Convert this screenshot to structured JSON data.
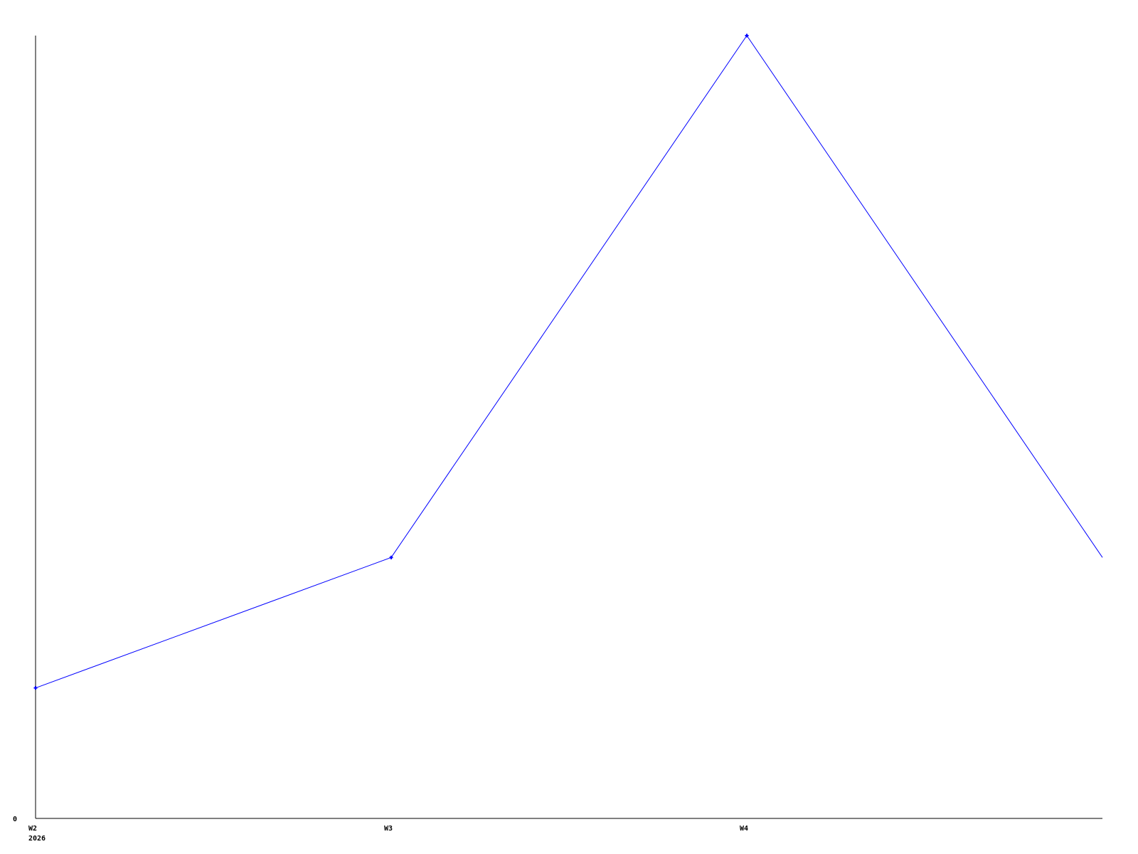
{
  "chart_data": {
    "type": "line",
    "categories": [
      "W2",
      "W3",
      "W4",
      ""
    ],
    "year_label": "2026",
    "series": [
      {
        "values": [
          1,
          2,
          6,
          2
        ],
        "color": "#0000ff"
      }
    ],
    "ylim": [
      0,
      6
    ],
    "y_tick_labels": [
      "0"
    ],
    "grid": false,
    "axis_color": "#000000",
    "background": "#ffffff"
  }
}
